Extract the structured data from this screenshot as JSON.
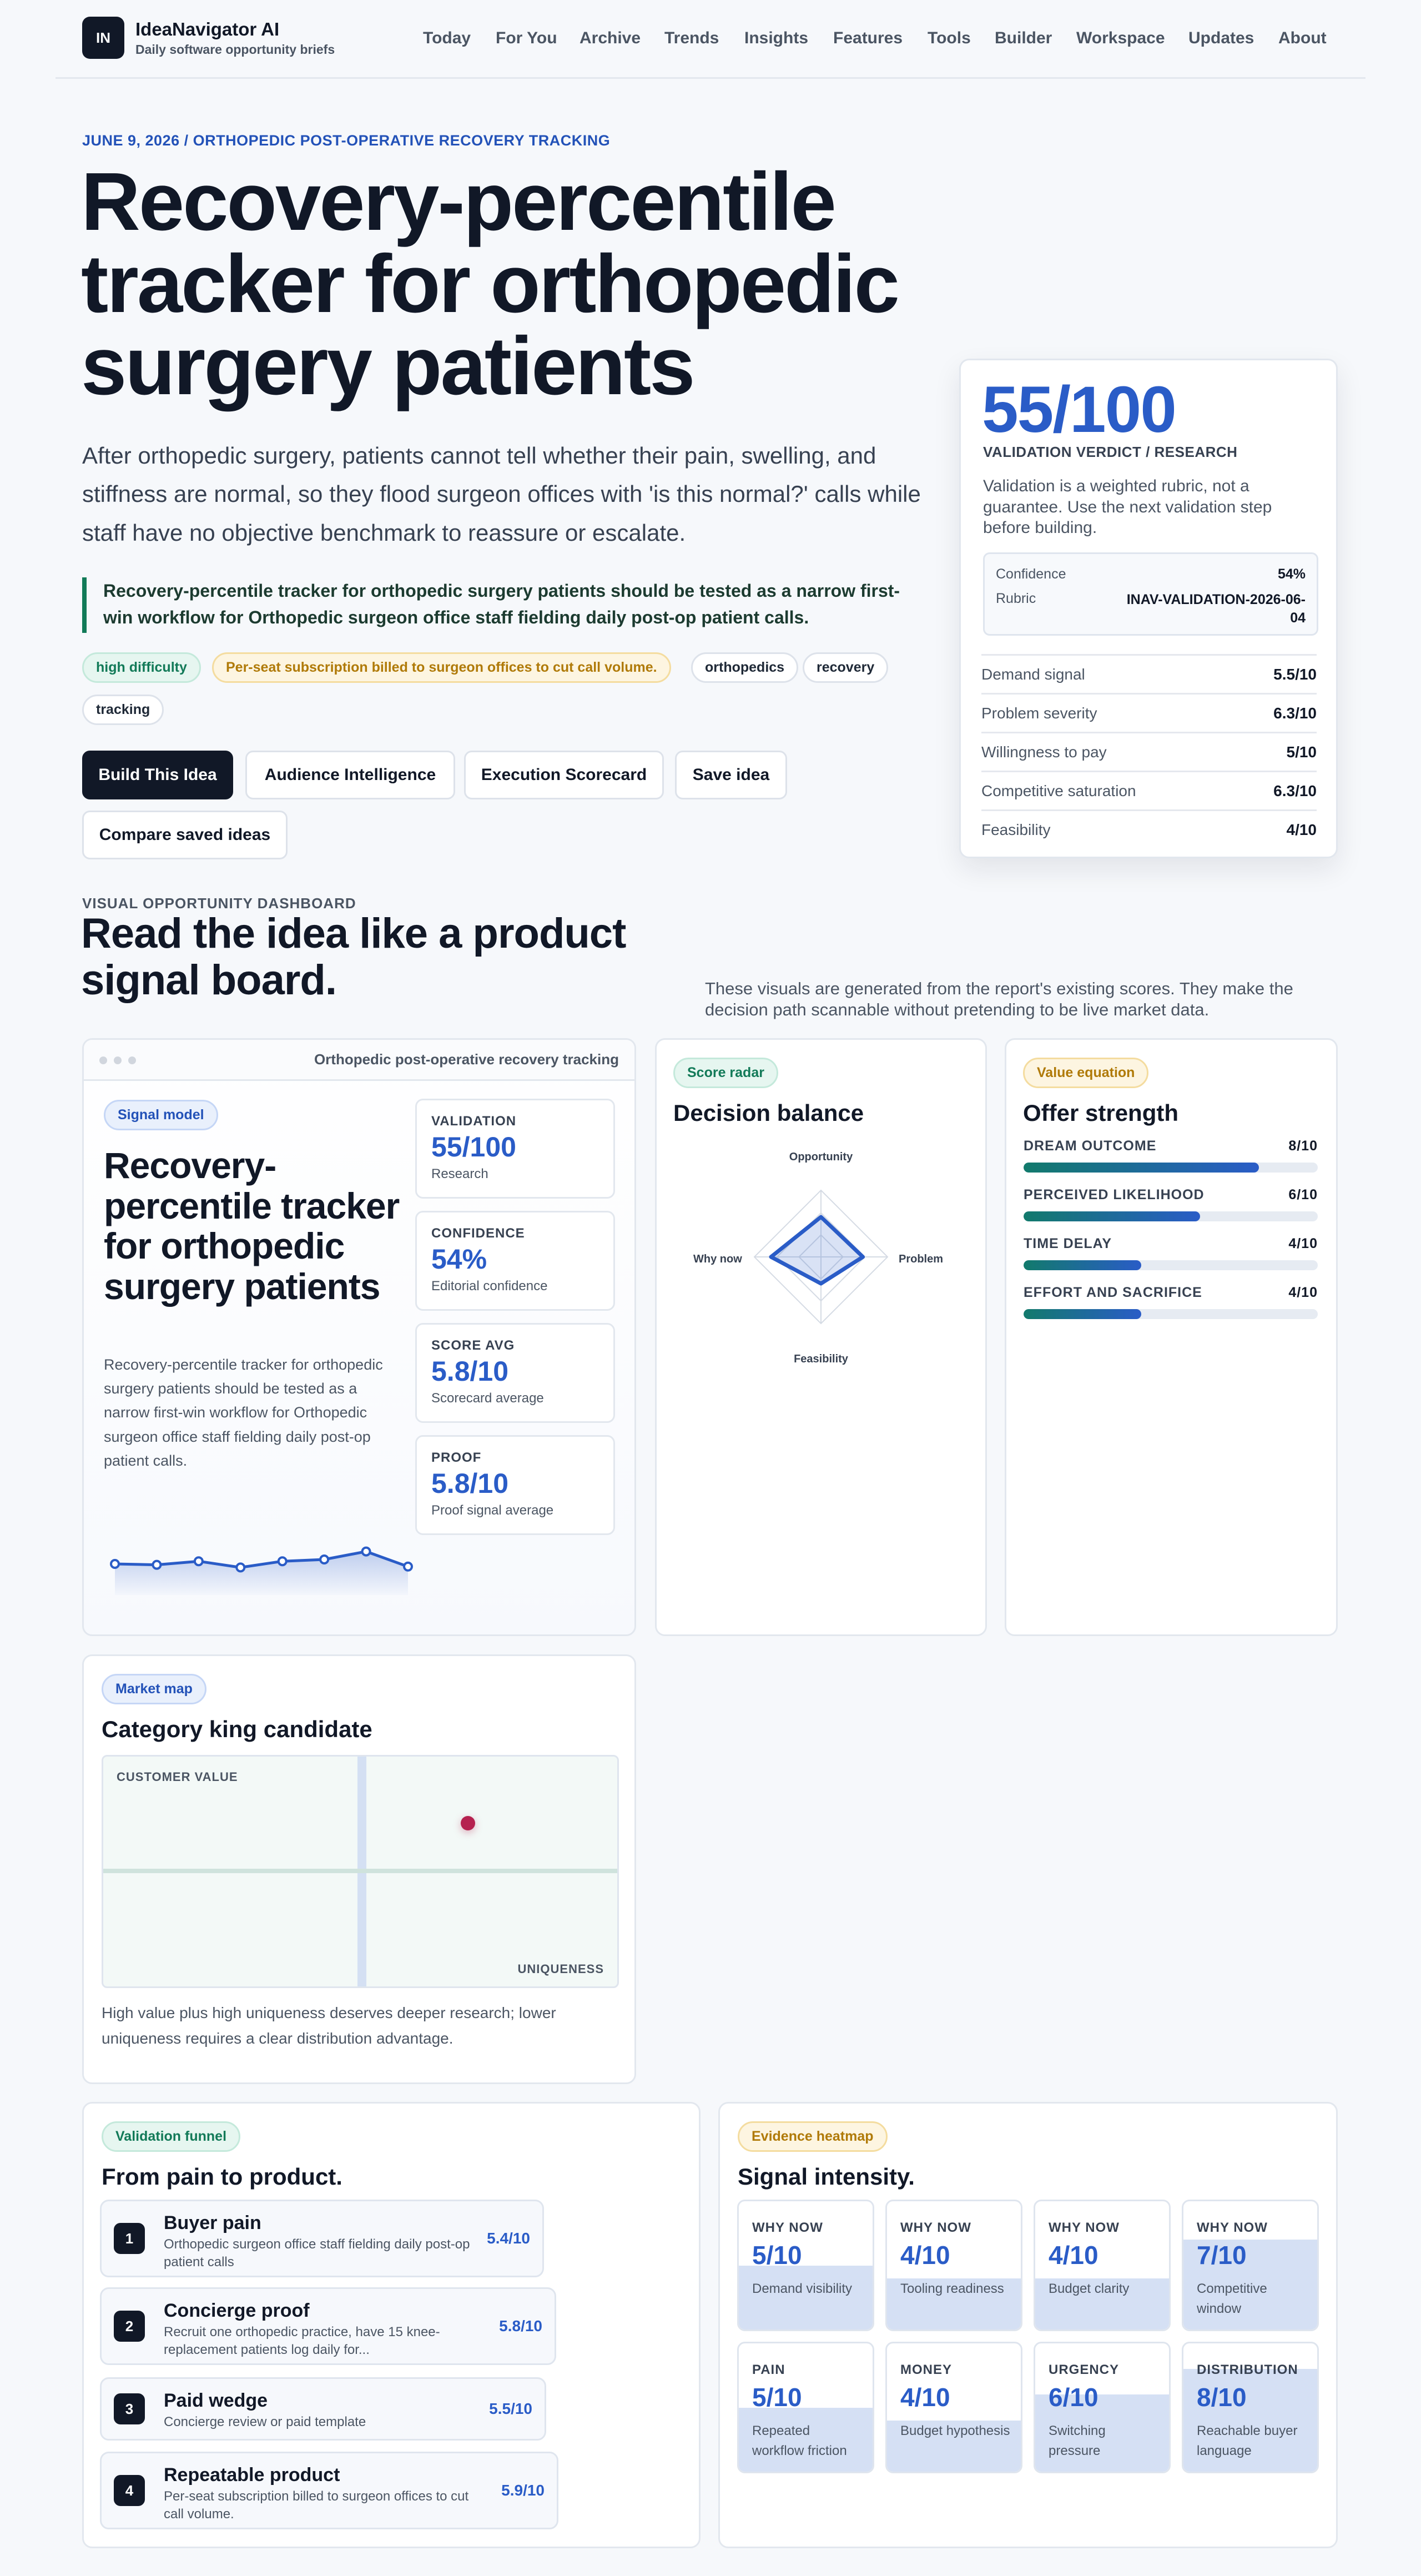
{
  "brand": {
    "logo": "IN",
    "name": "IdeaNavigator AI",
    "tagline": "Daily software opportunity briefs"
  },
  "nav": [
    "Today",
    "For You",
    "Archive",
    "Trends",
    "Insights",
    "Features",
    "Tools",
    "Builder",
    "Workspace",
    "Updates",
    "About"
  ],
  "hero": {
    "kicker": "JUNE 9, 2026 / ORTHOPEDIC POST-OPERATIVE RECOVERY TRACKING",
    "title": "Recovery-percentile tracker for orthopedic surgery patients",
    "summary": "After orthopedic surgery, patients cannot tell whether their pain, swelling, and stiffness are normal, so they flood surgeon offices with 'is this normal?' calls while staff have no objective benchmark to reassure or escalate.",
    "callout": "Recovery-percentile tracker for orthopedic surgery patients should be tested as a narrow first-win workflow for Orthopedic surgeon office staff fielding daily post-op patient calls.",
    "tags": [
      "high difficulty",
      "Per-seat subscription billed to surgeon offices to cut call volume.",
      "orthopedics",
      "recovery",
      "tracking"
    ],
    "buttons": [
      "Build This Idea",
      "Audience Intelligence",
      "Execution Scorecard",
      "Save idea",
      "Compare saved ideas"
    ]
  },
  "verdict": {
    "score": "55/100",
    "label": "VALIDATION VERDICT / RESEARCH",
    "note": "Validation is a weighted rubric, not a guarantee. Use the next validation step before building.",
    "confidence_label": "Confidence",
    "confidence": "54%",
    "rubric_label": "Rubric",
    "rubric": "INAV-VALIDATION-2026-06-04",
    "metrics": [
      {
        "k": "Demand signal",
        "v": "5.5/10"
      },
      {
        "k": "Problem severity",
        "v": "6.3/10"
      },
      {
        "k": "Willingness to pay",
        "v": "5/10"
      },
      {
        "k": "Competitive saturation",
        "v": "6.3/10"
      },
      {
        "k": "Feasibility",
        "v": "4/10"
      }
    ]
  },
  "dashboard": {
    "eyebrow": "VISUAL OPPORTUNITY DASHBOARD",
    "title": "Read the idea like a product signal board.",
    "note": "These visuals are generated from the report's existing scores. They make the decision path scannable without pretending to be live market data."
  },
  "signal": {
    "window_title": "Orthopedic post-operative recovery tracking",
    "pill": "Signal model",
    "title": "Recovery-percentile tracker for orthopedic surgery patients",
    "desc": "Recovery-percentile tracker for orthopedic surgery patients should be tested as a narrow first-win workflow for Orthopedic surgeon office staff fielding daily post-op patient calls.",
    "stats": [
      {
        "l": "VALIDATION",
        "v": "55/100",
        "s": "Research"
      },
      {
        "l": "CONFIDENCE",
        "v": "54%",
        "s": "Editorial confidence"
      },
      {
        "l": "SCORE AVG",
        "v": "5.8/10",
        "s": "Scorecard average"
      },
      {
        "l": "PROOF",
        "v": "5.8/10",
        "s": "Proof signal average"
      }
    ],
    "sparkline": [
      0.45,
      0.43,
      0.51,
      0.37,
      0.51,
      0.55,
      0.73,
      0.39
    ]
  },
  "radar": {
    "pill": "Score radar",
    "title": "Decision balance",
    "axes": [
      "Opportunity",
      "Problem",
      "Feasibility",
      "Why now"
    ],
    "values": [
      0.6,
      0.63,
      0.4,
      0.75
    ]
  },
  "offer": {
    "pill": "Value equation",
    "title": "Offer strength",
    "bars": [
      {
        "l": "DREAM OUTCOME",
        "v": "8/10",
        "f": 0.8
      },
      {
        "l": "PERCEIVED LIKELIHOOD",
        "v": "6/10",
        "f": 0.6
      },
      {
        "l": "TIME DELAY",
        "v": "4/10",
        "f": 0.4
      },
      {
        "l": "EFFORT AND SACRIFICE",
        "v": "4/10",
        "f": 0.4
      }
    ]
  },
  "market": {
    "pill": "Market map",
    "title": "Category king candidate",
    "y_label": "CUSTOMER VALUE",
    "x_label": "UNIQUENESS",
    "note": "High value plus high uniqueness deserves deeper research; lower uniqueness requires a clear distribution advantage.",
    "point": {
      "uniqueness": 0.71,
      "value": 0.71
    }
  },
  "funnel": {
    "pill": "Validation funnel",
    "title": "From pain to product.",
    "steps": [
      {
        "n": "1",
        "t": "Buyer pain",
        "d": "Orthopedic surgeon office staff fielding daily post-op patient calls",
        "s": "5.4/10"
      },
      {
        "n": "2",
        "t": "Concierge proof",
        "d": "Recruit one orthopedic practice, have 15 knee-replacement patients log daily for...",
        "s": "5.8/10"
      },
      {
        "n": "3",
        "t": "Paid wedge",
        "d": "Concierge review or paid template",
        "s": "5.5/10"
      },
      {
        "n": "4",
        "t": "Repeatable product",
        "d": "Per-seat subscription billed to surgeon offices to cut call volume.",
        "s": "5.9/10"
      }
    ]
  },
  "heatmap": {
    "pill": "Evidence heatmap",
    "title": "Signal intensity.",
    "tiles": [
      {
        "l": "WHY NOW",
        "v": "5/10",
        "s": "Demand visibility",
        "f": 0.5
      },
      {
        "l": "WHY NOW",
        "v": "4/10",
        "s": "Tooling readiness",
        "f": 0.4
      },
      {
        "l": "WHY NOW",
        "v": "4/10",
        "s": "Budget clarity",
        "f": 0.4
      },
      {
        "l": "WHY NOW",
        "v": "7/10",
        "s": "Competitive window",
        "f": 0.7
      },
      {
        "l": "PAIN",
        "v": "5/10",
        "s": "Repeated workflow friction",
        "f": 0.5
      },
      {
        "l": "MONEY",
        "v": "4/10",
        "s": "Budget hypothesis",
        "f": 0.4
      },
      {
        "l": "URGENCY",
        "v": "6/10",
        "s": "Switching pressure",
        "f": 0.6
      },
      {
        "l": "DISTRIBUTION",
        "v": "8/10",
        "s": "Reachable buyer language",
        "f": 0.8
      }
    ]
  }
}
